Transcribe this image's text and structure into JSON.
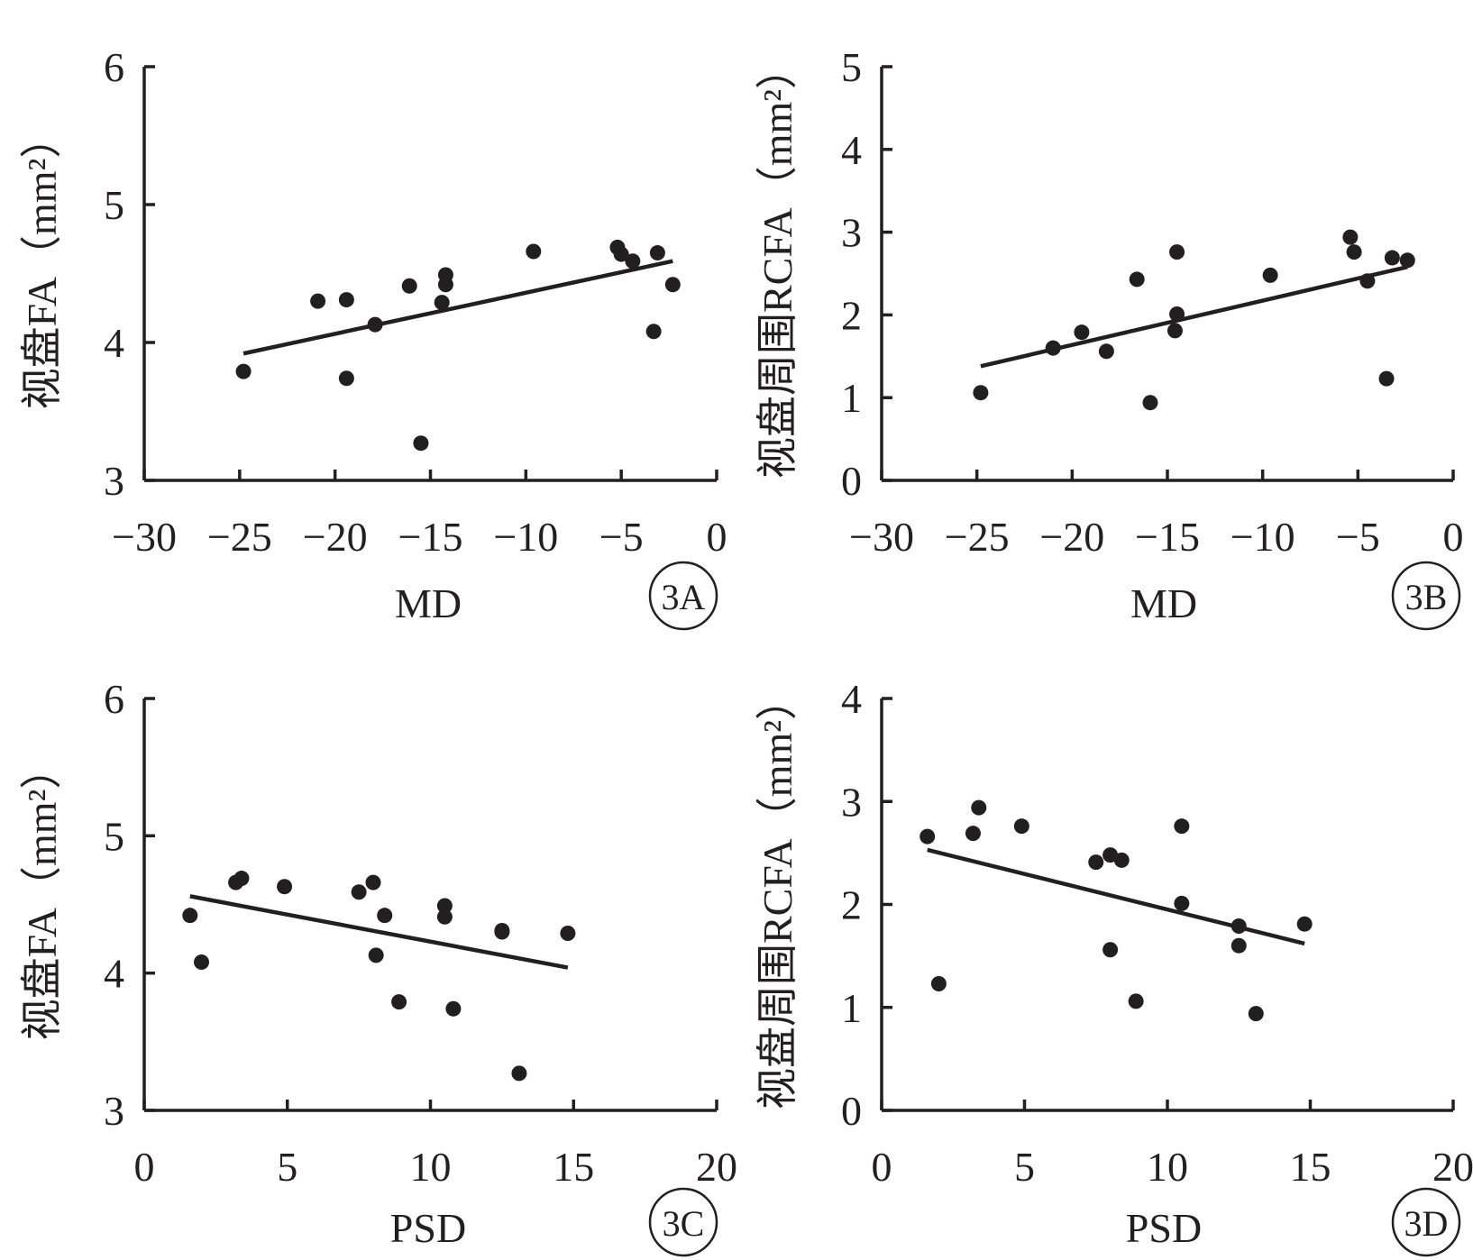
{
  "chart_data": [
    {
      "panel": "3A",
      "type": "scatter",
      "xlabel": "MD",
      "ylabel": "视盘FA（mm²）",
      "xlim": [
        -30,
        0
      ],
      "ylim": [
        3,
        6
      ],
      "x_ticks": [
        "−30",
        "−25",
        "−20",
        "−15",
        "−10",
        "−5",
        "0"
      ],
      "y_ticks": [
        "3",
        "4",
        "5",
        "6"
      ],
      "points": [
        [
          -24.8,
          3.79
        ],
        [
          -20.9,
          4.3
        ],
        [
          -19.4,
          4.31
        ],
        [
          -19.4,
          3.74
        ],
        [
          -17.9,
          4.13
        ],
        [
          -16.1,
          4.41
        ],
        [
          -15.5,
          3.27
        ],
        [
          -14.4,
          4.29
        ],
        [
          -14.2,
          4.42
        ],
        [
          -14.2,
          4.49
        ],
        [
          -9.6,
          4.66
        ],
        [
          -5.2,
          4.69
        ],
        [
          -5.0,
          4.64
        ],
        [
          -4.4,
          4.59
        ],
        [
          -3.1,
          4.65
        ],
        [
          -3.3,
          4.08
        ],
        [
          -2.3,
          4.42
        ]
      ],
      "fit_line": [
        [
          -24.8,
          3.92
        ],
        [
          -2.3,
          4.59
        ]
      ]
    },
    {
      "panel": "3B",
      "type": "scatter",
      "xlabel": "MD",
      "ylabel": "视盘周围RCFA（mm²）",
      "xlim": [
        -30,
        0
      ],
      "ylim": [
        0,
        5
      ],
      "x_ticks": [
        "−30",
        "−25",
        "−20",
        "−15",
        "−10",
        "−5",
        "0"
      ],
      "y_ticks": [
        "0",
        "1",
        "2",
        "3",
        "4",
        "5"
      ],
      "points": [
        [
          -24.8,
          1.06
        ],
        [
          -21.0,
          1.6
        ],
        [
          -19.5,
          1.79
        ],
        [
          -18.2,
          1.56
        ],
        [
          -16.6,
          2.43
        ],
        [
          -15.9,
          0.94
        ],
        [
          -14.6,
          1.81
        ],
        [
          -14.5,
          2.01
        ],
        [
          -14.5,
          2.76
        ],
        [
          -9.6,
          2.48
        ],
        [
          -5.4,
          2.94
        ],
        [
          -5.2,
          2.76
        ],
        [
          -4.5,
          2.41
        ],
        [
          -3.2,
          2.69
        ],
        [
          -3.5,
          1.23
        ],
        [
          -2.4,
          2.66
        ]
      ],
      "fit_line": [
        [
          -24.8,
          1.38
        ],
        [
          -2.4,
          2.58
        ]
      ]
    },
    {
      "panel": "3C",
      "type": "scatter",
      "xlabel": "PSD",
      "ylabel": "视盘FA（mm²）",
      "xlim": [
        0,
        20
      ],
      "ylim": [
        3,
        6
      ],
      "x_ticks": [
        "0",
        "5",
        "10",
        "15",
        "20"
      ],
      "y_ticks": [
        "3",
        "4",
        "5",
        "6"
      ],
      "points": [
        [
          1.6,
          4.42
        ],
        [
          2.0,
          4.08
        ],
        [
          3.2,
          4.66
        ],
        [
          3.4,
          4.69
        ],
        [
          4.9,
          4.63
        ],
        [
          7.5,
          4.59
        ],
        [
          8.0,
          4.66
        ],
        [
          8.1,
          4.13
        ],
        [
          8.4,
          4.42
        ],
        [
          8.9,
          3.79
        ],
        [
          10.5,
          4.49
        ],
        [
          10.5,
          4.41
        ],
        [
          10.8,
          3.74
        ],
        [
          12.5,
          4.31
        ],
        [
          12.5,
          4.3
        ],
        [
          13.1,
          3.27
        ],
        [
          14.8,
          4.29
        ]
      ],
      "fit_line": [
        [
          1.6,
          4.56
        ],
        [
          14.8,
          4.04
        ]
      ]
    },
    {
      "panel": "3D",
      "type": "scatter",
      "xlabel": "PSD",
      "ylabel": "视盘周围RCFA（mm²）",
      "xlim": [
        0,
        20
      ],
      "ylim": [
        0,
        4
      ],
      "x_ticks": [
        "0",
        "5",
        "10",
        "15",
        "20"
      ],
      "y_ticks": [
        "0",
        "1",
        "2",
        "3",
        "4"
      ],
      "points": [
        [
          1.6,
          2.66
        ],
        [
          2.0,
          1.23
        ],
        [
          3.2,
          2.69
        ],
        [
          3.4,
          2.94
        ],
        [
          4.9,
          2.76
        ],
        [
          7.5,
          2.41
        ],
        [
          8.0,
          2.48
        ],
        [
          8.0,
          1.56
        ],
        [
          8.4,
          2.43
        ],
        [
          8.9,
          1.06
        ],
        [
          10.5,
          2.76
        ],
        [
          10.5,
          2.01
        ],
        [
          12.5,
          1.79
        ],
        [
          12.5,
          1.6
        ],
        [
          13.1,
          0.94
        ],
        [
          14.8,
          1.81
        ]
      ],
      "fit_line": [
        [
          1.6,
          2.53
        ],
        [
          14.8,
          1.62
        ]
      ]
    }
  ]
}
